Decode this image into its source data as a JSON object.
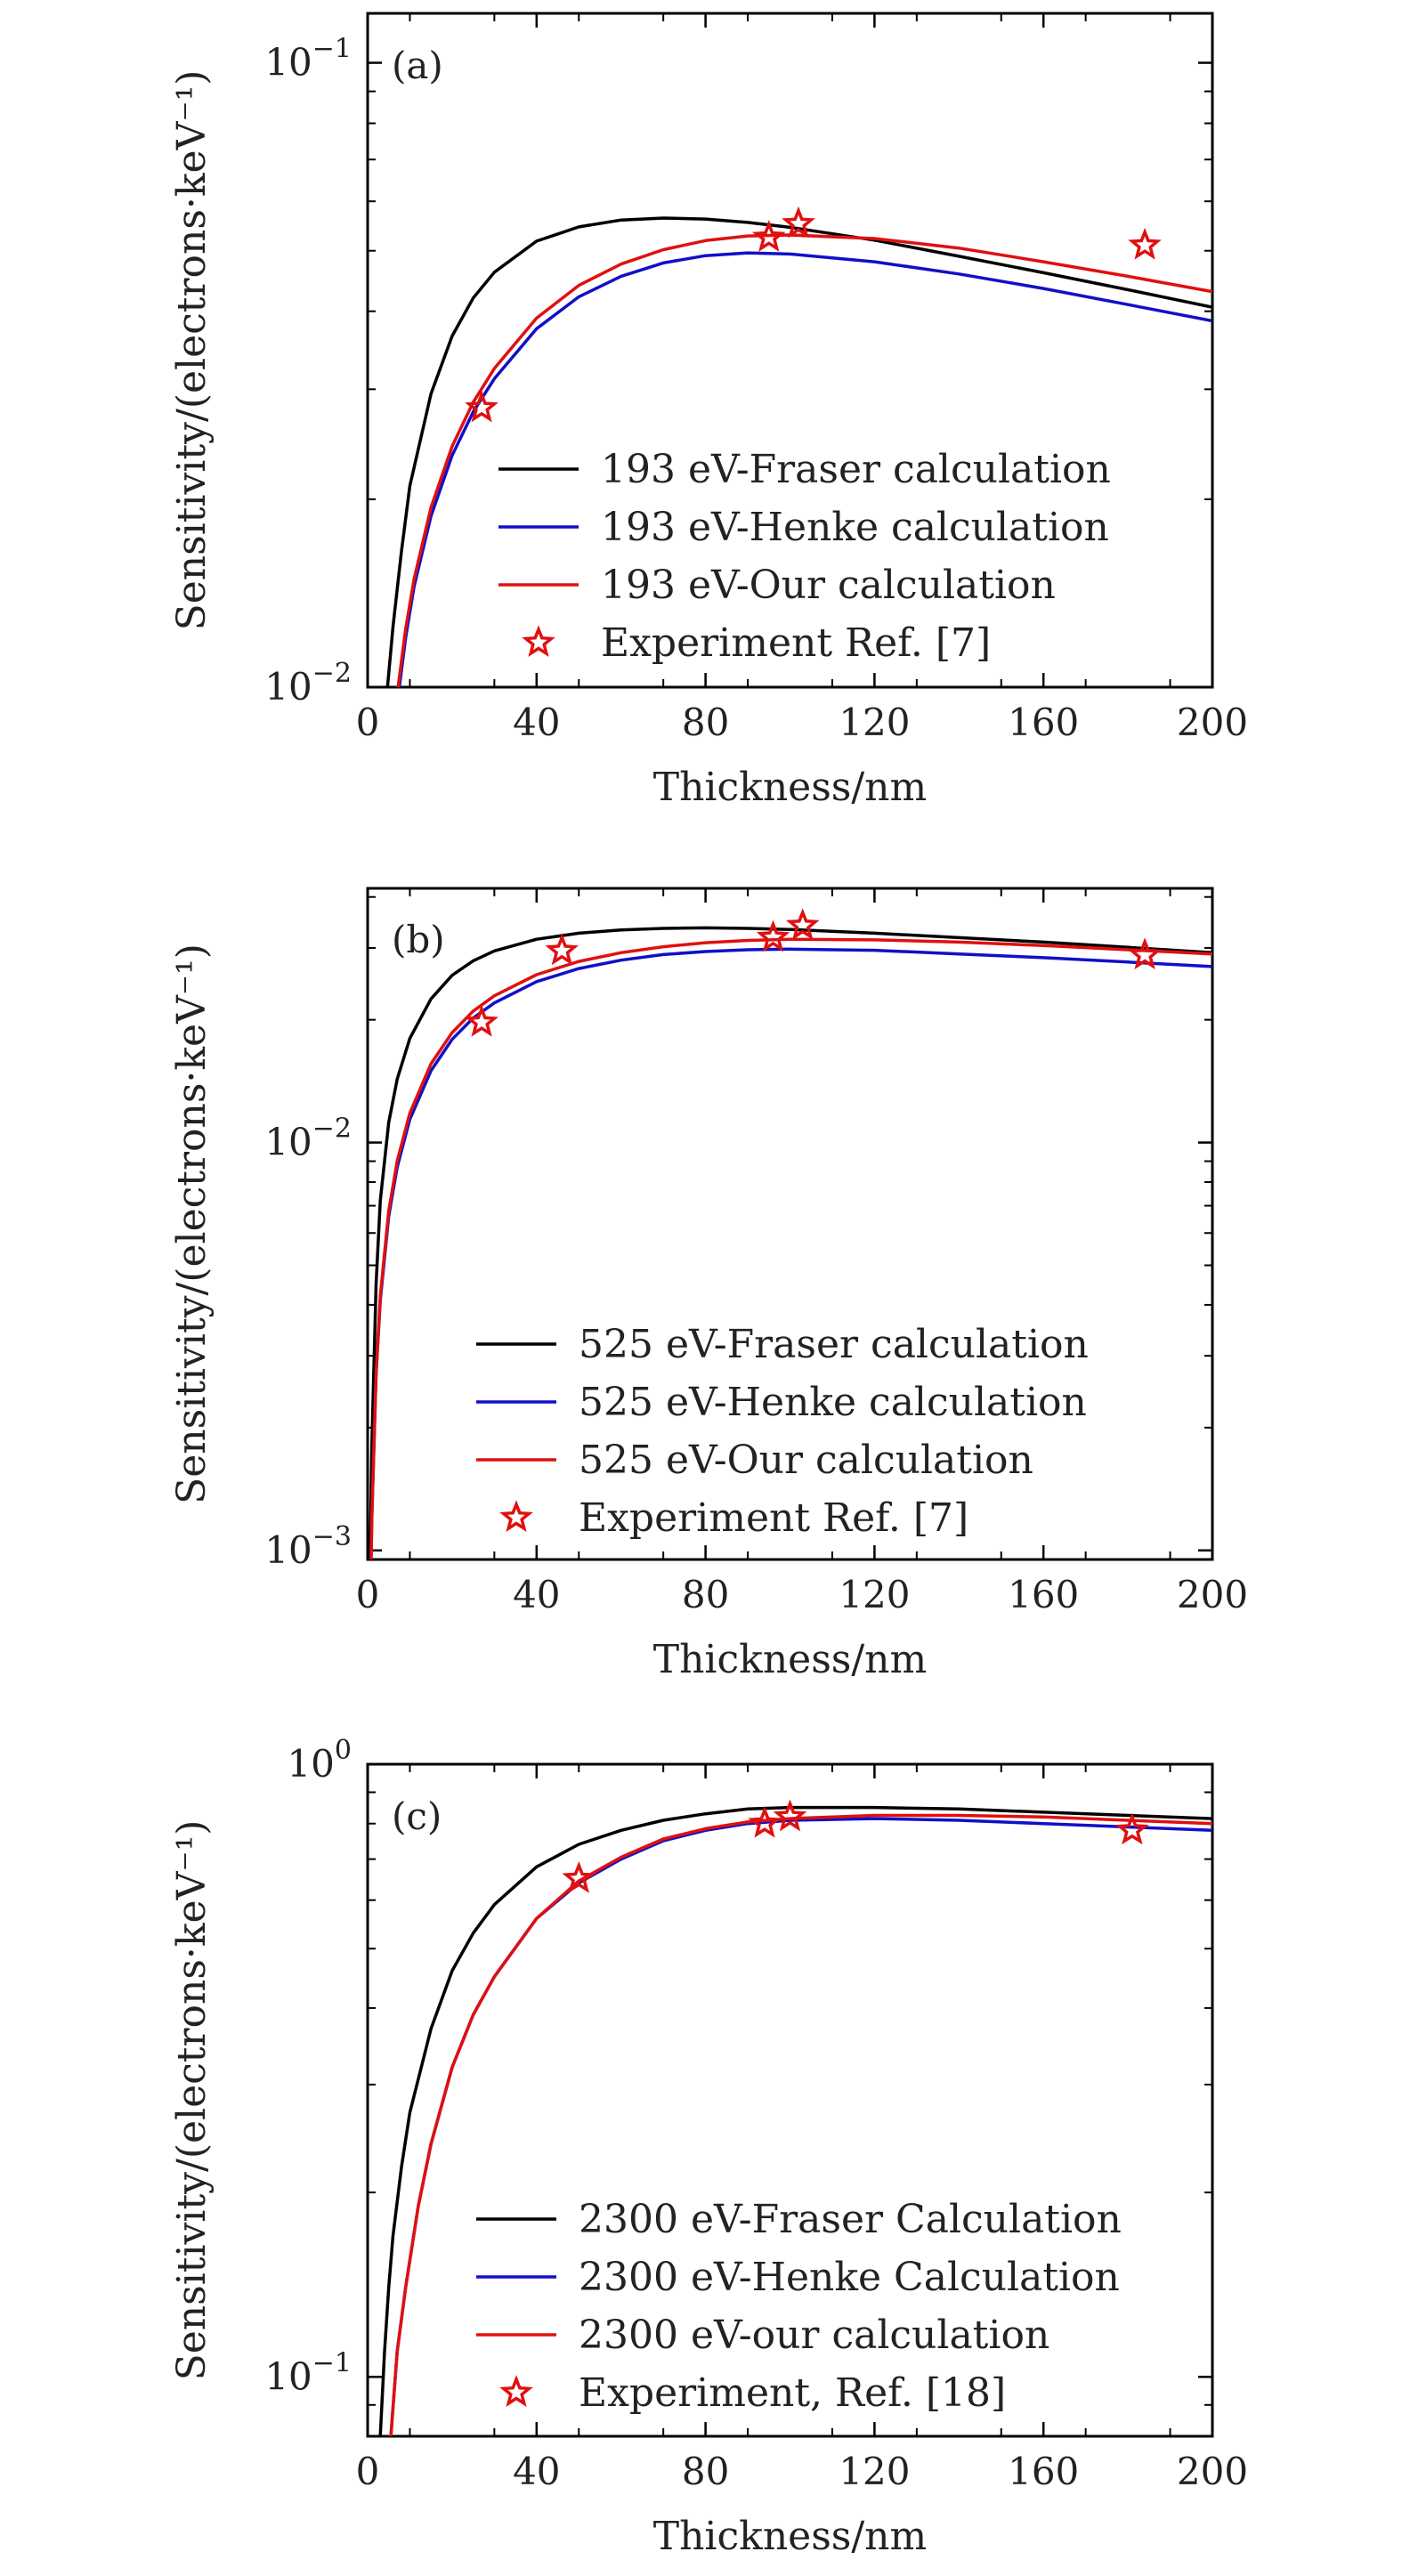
{
  "chart_data": [
    {
      "type": "line",
      "panel_label": "(a)",
      "xlabel": "Thickness/nm",
      "ylabel": "Sensitivity/(electrons·keV⁻¹)",
      "xlim": [
        0,
        200
      ],
      "ylim": [
        0.01,
        0.12
      ],
      "yscale": "log",
      "xticks": [
        0,
        40,
        80,
        120,
        160,
        200
      ],
      "xtick_labels": [
        "0",
        "40",
        "80",
        "120",
        "160",
        "200"
      ],
      "yticks": [
        0.01,
        0.1
      ],
      "ytick_labels": [
        {
          "base": "10",
          "exp": "−2"
        },
        {
          "base": "10",
          "exp": "−1"
        }
      ],
      "legend_position": "lower-right",
      "series": [
        {
          "name": "193 eV-Fraser calculation",
          "color": "#000000",
          "x": [
            4.7,
            6,
            8,
            10,
            15,
            20,
            25,
            30,
            40,
            50,
            60,
            70,
            80,
            90,
            100,
            120,
            140,
            160,
            180,
            200
          ],
          "y": [
            0.01,
            0.0125,
            0.0165,
            0.021,
            0.0295,
            0.0365,
            0.042,
            0.0462,
            0.0518,
            0.0546,
            0.056,
            0.0564,
            0.0562,
            0.0555,
            0.0545,
            0.052,
            0.049,
            0.0461,
            0.0433,
            0.0406
          ]
        },
        {
          "name": "193 eV-Henke calculation",
          "color": "#1010c8",
          "x": [
            7.5,
            9,
            11,
            15,
            20,
            25,
            30,
            40,
            50,
            60,
            70,
            80,
            90,
            100,
            120,
            140,
            160,
            180,
            200
          ],
          "y": [
            0.01,
            0.012,
            0.0145,
            0.0188,
            0.0235,
            0.0276,
            0.0312,
            0.0375,
            0.0422,
            0.0455,
            0.0478,
            0.0491,
            0.0496,
            0.0494,
            0.048,
            0.0459,
            0.0435,
            0.041,
            0.0386
          ]
        },
        {
          "name": "193 eV-Our calculation",
          "color": "#e01010",
          "x": [
            7.2,
            9,
            11,
            15,
            20,
            25,
            30,
            40,
            50,
            60,
            70,
            80,
            90,
            100,
            120,
            140,
            160,
            180,
            200
          ],
          "y": [
            0.01,
            0.0124,
            0.0149,
            0.0194,
            0.0243,
            0.0286,
            0.0324,
            0.039,
            0.044,
            0.0476,
            0.0502,
            0.0519,
            0.0528,
            0.053,
            0.0523,
            0.0505,
            0.048,
            0.0455,
            0.043
          ]
        }
      ],
      "experiment": {
        "name": "Experiment Ref. [7]",
        "color": "#e01010",
        "x": [
          27,
          95,
          102,
          184
        ],
        "y": [
          0.028,
          0.0525,
          0.0552,
          0.051
        ]
      }
    },
    {
      "type": "line",
      "panel_label": "(b)",
      "xlabel": "Thickness/nm",
      "ylabel": "Sensitivity/(electrons·keV⁻¹)",
      "xlim": [
        0,
        200
      ],
      "ylim": [
        0.00095,
        0.042
      ],
      "yscale": "log",
      "xticks": [
        0,
        40,
        80,
        120,
        160,
        200
      ],
      "xtick_labels": [
        "0",
        "40",
        "80",
        "120",
        "160",
        "200"
      ],
      "yticks": [
        0.001,
        0.01
      ],
      "ytick_labels": [
        {
          "base": "10",
          "exp": "−3"
        },
        {
          "base": "10",
          "exp": "−2"
        }
      ],
      "legend_position": "lower-right",
      "series": [
        {
          "name": "525 eV-Fraser calculation",
          "color": "#000000",
          "x": [
            0.5,
            1,
            2,
            3,
            5,
            7,
            10,
            15,
            20,
            25,
            30,
            40,
            50,
            60,
            70,
            80,
            90,
            100,
            120,
            140,
            160,
            180,
            200
          ],
          "y": [
            0.0008,
            0.0018,
            0.0045,
            0.0072,
            0.0112,
            0.0143,
            0.018,
            0.0225,
            0.0257,
            0.0279,
            0.0295,
            0.0315,
            0.0326,
            0.0332,
            0.0335,
            0.0336,
            0.0335,
            0.0333,
            0.0326,
            0.0318,
            0.031,
            0.0301,
            0.0292
          ]
        },
        {
          "name": "525 eV-Henke calculation",
          "color": "#1010c8",
          "x": [
            0.5,
            1,
            2,
            3,
            5,
            7,
            10,
            15,
            20,
            25,
            30,
            40,
            50,
            60,
            70,
            80,
            90,
            100,
            120,
            140,
            160,
            180,
            200
          ],
          "y": [
            0.0006,
            0.0012,
            0.0027,
            0.0041,
            0.0066,
            0.0087,
            0.0114,
            0.015,
            0.0179,
            0.0202,
            0.022,
            0.0248,
            0.0267,
            0.028,
            0.0289,
            0.0294,
            0.0297,
            0.0298,
            0.0296,
            0.029,
            0.0284,
            0.0277,
            0.027
          ]
        },
        {
          "name": "525 eV-Our calculation",
          "color": "#e01010",
          "x": [
            0.5,
            1,
            2,
            3,
            5,
            7,
            10,
            15,
            20,
            25,
            30,
            40,
            50,
            60,
            70,
            80,
            90,
            100,
            120,
            140,
            160,
            180,
            200
          ],
          "y": [
            0.0006,
            0.0012,
            0.0027,
            0.0042,
            0.0068,
            0.009,
            0.0118,
            0.0156,
            0.0186,
            0.021,
            0.0229,
            0.0258,
            0.0278,
            0.0292,
            0.0302,
            0.0309,
            0.0313,
            0.0315,
            0.0314,
            0.031,
            0.0304,
            0.0297,
            0.029
          ]
        }
      ],
      "experiment": {
        "name": "Experiment Ref. [7]",
        "color": "#e01010",
        "x": [
          27,
          46,
          96,
          103,
          184
        ],
        "y": [
          0.0197,
          0.0295,
          0.0318,
          0.034,
          0.0288
        ]
      }
    },
    {
      "type": "line",
      "panel_label": "(c)",
      "xlabel": "Thickness/nm",
      "ylabel": "Sensitivity/(electrons·keV⁻¹)",
      "xlim": [
        0,
        200
      ],
      "ylim": [
        0.08,
        1.0
      ],
      "yscale": "log",
      "xticks": [
        0,
        40,
        80,
        120,
        160,
        200
      ],
      "xtick_labels": [
        "0",
        "40",
        "80",
        "120",
        "160",
        "200"
      ],
      "yticks": [
        0.1,
        1.0
      ],
      "ytick_labels": [
        {
          "base": "10",
          "exp": "−1"
        },
        {
          "base": "10",
          "exp": "0"
        }
      ],
      "legend_position": "lower-right",
      "series": [
        {
          "name": "2300 eV-Fraser Calculation",
          "color": "#000000",
          "x": [
            3,
            4,
            5,
            6,
            8,
            10,
            15,
            20,
            25,
            30,
            40,
            50,
            60,
            70,
            80,
            90,
            100,
            120,
            140,
            160,
            180,
            200
          ],
          "y": [
            0.08,
            0.11,
            0.14,
            0.17,
            0.22,
            0.27,
            0.37,
            0.46,
            0.53,
            0.59,
            0.68,
            0.74,
            0.78,
            0.81,
            0.83,
            0.845,
            0.85,
            0.85,
            0.845,
            0.835,
            0.825,
            0.815
          ]
        },
        {
          "name": "2300 eV-Henke Calculation",
          "color": "#1010c8",
          "x": [
            5.5,
            7,
            9,
            12,
            15,
            20,
            25,
            30,
            40,
            50,
            60,
            70,
            80,
            90,
            100,
            120,
            140,
            160,
            180,
            200
          ],
          "y": [
            0.08,
            0.11,
            0.14,
            0.19,
            0.24,
            0.32,
            0.39,
            0.45,
            0.56,
            0.64,
            0.7,
            0.75,
            0.78,
            0.8,
            0.81,
            0.815,
            0.81,
            0.8,
            0.79,
            0.78
          ]
        },
        {
          "name": "2300 eV-our calculation",
          "color": "#e01010",
          "x": [
            5.5,
            7,
            9,
            12,
            15,
            20,
            25,
            30,
            40,
            50,
            60,
            70,
            80,
            90,
            100,
            120,
            140,
            160,
            180,
            200
          ],
          "y": [
            0.08,
            0.11,
            0.14,
            0.19,
            0.24,
            0.32,
            0.39,
            0.45,
            0.56,
            0.645,
            0.705,
            0.755,
            0.785,
            0.805,
            0.815,
            0.825,
            0.825,
            0.82,
            0.81,
            0.8
          ]
        }
      ],
      "experiment": {
        "name": "Experiment, Ref. [18]",
        "color": "#e01010",
        "x": [
          50,
          94,
          100,
          181
        ],
        "y": [
          0.65,
          0.8,
          0.82,
          0.78
        ]
      }
    }
  ]
}
